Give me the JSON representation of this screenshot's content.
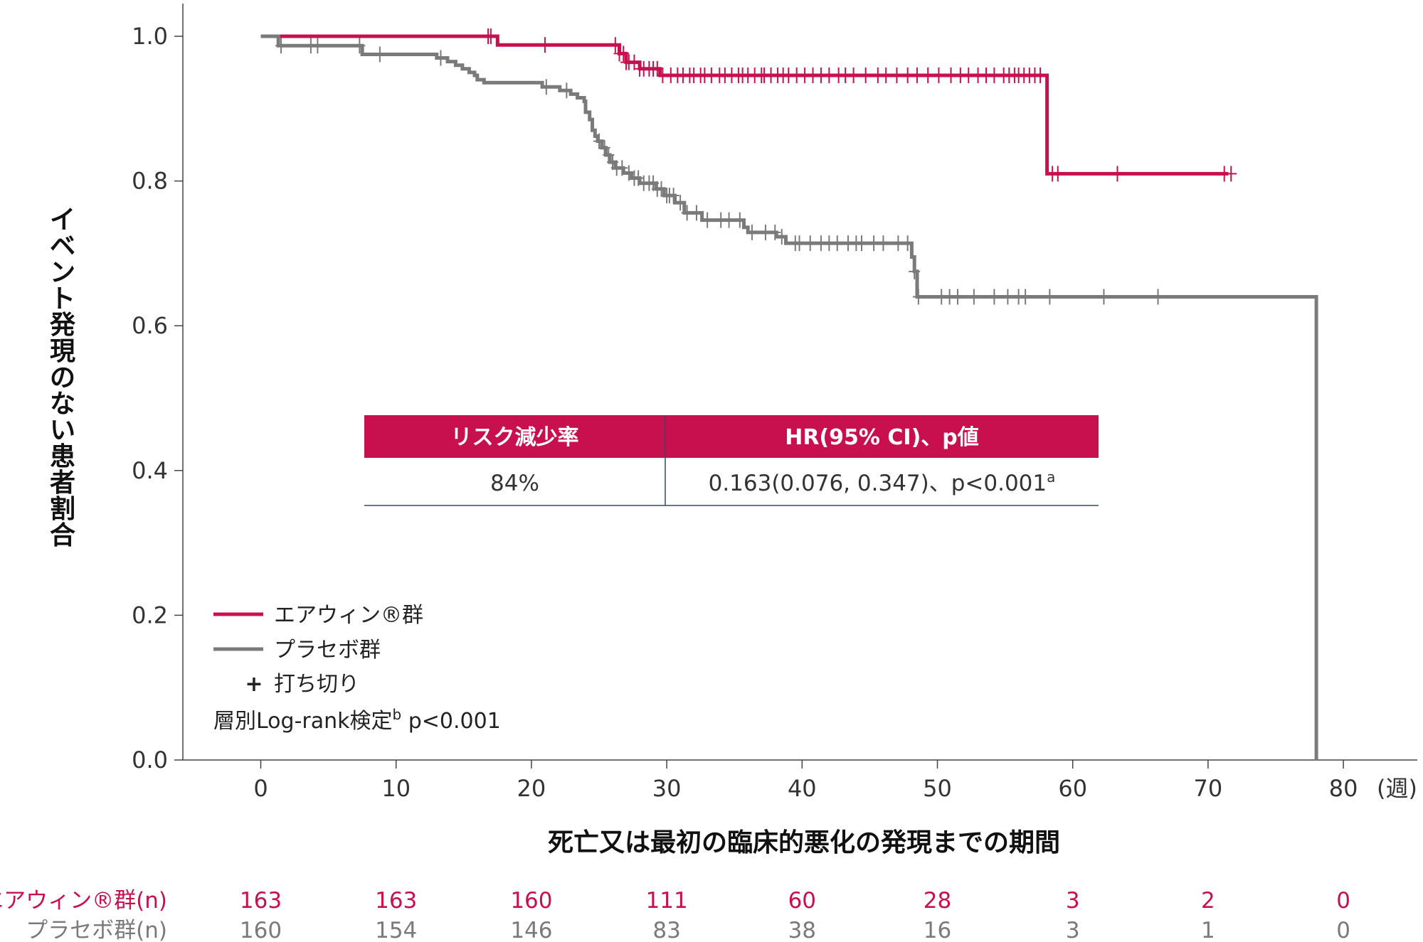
{
  "chart_data": {
    "type": "line",
    "step": true,
    "ylabel": "イベント発現のない患者割合",
    "xlabel": "死亡又は最初の臨床的悪化の発現までの期間",
    "x_unit": "(週)",
    "xlim": [
      -5.5,
      86
    ],
    "ylim": [
      0,
      1.05
    ],
    "xticks": [
      "0",
      "10",
      "20",
      "30",
      "40",
      "50",
      "60",
      "70",
      "80"
    ],
    "yticks": [
      "0.0",
      "0.2",
      "0.4",
      "0.6",
      "0.8",
      "1.0"
    ],
    "grid": false,
    "series": [
      {
        "name": "エアウィン®群",
        "color": "#c8104e",
        "points": [
          [
            0,
            1.0
          ],
          [
            17.5,
            1.0
          ],
          [
            17.5,
            0.988
          ],
          [
            26.5,
            0.988
          ],
          [
            26.5,
            0.976
          ],
          [
            27,
            0.976
          ],
          [
            27,
            0.964
          ],
          [
            28,
            0.964
          ],
          [
            28,
            0.955
          ],
          [
            29.5,
            0.955
          ],
          [
            29.5,
            0.946
          ],
          [
            58.1,
            0.946
          ],
          [
            58.1,
            0.81
          ],
          [
            71.5,
            0.81
          ]
        ],
        "censor_x": [
          16.8,
          17.0,
          21.0,
          26.2,
          26.5,
          26.8,
          27.0,
          27.2,
          27.6,
          28.0,
          28.3,
          28.7,
          29.0,
          29.3,
          29.7,
          30.3,
          30.8,
          31.2,
          31.7,
          32.0,
          32.5,
          32.8,
          33.3,
          33.9,
          34.3,
          34.8,
          35.3,
          35.6,
          36.0,
          36.5,
          37.0,
          37.2,
          37.7,
          38.2,
          38.6,
          39.0,
          39.6,
          40.2,
          40.8,
          41.4,
          42.0,
          42.7,
          43.2,
          43.8,
          44.7,
          45.6,
          46.2,
          47.0,
          47.8,
          48.5,
          49.3,
          50.1,
          51.0,
          51.7,
          52.3,
          53.0,
          53.6,
          54.2,
          54.9,
          55.3,
          55.7,
          56.0,
          56.4,
          56.8,
          57.2,
          57.6,
          58.5,
          58.9,
          63.3,
          71.2,
          71.7
        ]
      },
      {
        "name": "プラセボ群",
        "color": "#7a7a7a",
        "points": [
          [
            0,
            1.0
          ],
          [
            1.3,
            1.0
          ],
          [
            1.3,
            0.987
          ],
          [
            7.5,
            0.987
          ],
          [
            7.5,
            0.975
          ],
          [
            13.0,
            0.975
          ],
          [
            13.0,
            0.97
          ],
          [
            13.8,
            0.97
          ],
          [
            13.8,
            0.965
          ],
          [
            14.4,
            0.965
          ],
          [
            14.4,
            0.96
          ],
          [
            14.9,
            0.96
          ],
          [
            14.9,
            0.955
          ],
          [
            15.4,
            0.955
          ],
          [
            15.4,
            0.95
          ],
          [
            15.8,
            0.95
          ],
          [
            15.8,
            0.946
          ],
          [
            16.0,
            0.946
          ],
          [
            16.0,
            0.94
          ],
          [
            16.5,
            0.94
          ],
          [
            16.5,
            0.936
          ],
          [
            20.8,
            0.936
          ],
          [
            20.8,
            0.93
          ],
          [
            22.1,
            0.93
          ],
          [
            22.1,
            0.925
          ],
          [
            22.9,
            0.925
          ],
          [
            22.9,
            0.92
          ],
          [
            23.4,
            0.92
          ],
          [
            23.4,
            0.915
          ],
          [
            23.9,
            0.915
          ],
          [
            23.9,
            0.91
          ],
          [
            24.0,
            0.91
          ],
          [
            24.0,
            0.895
          ],
          [
            24.3,
            0.895
          ],
          [
            24.3,
            0.885
          ],
          [
            24.5,
            0.885
          ],
          [
            24.5,
            0.87
          ],
          [
            24.7,
            0.87
          ],
          [
            24.7,
            0.862
          ],
          [
            24.9,
            0.862
          ],
          [
            24.9,
            0.855
          ],
          [
            25.2,
            0.855
          ],
          [
            25.2,
            0.846
          ],
          [
            25.5,
            0.846
          ],
          [
            25.5,
            0.836
          ],
          [
            25.8,
            0.836
          ],
          [
            25.8,
            0.826
          ],
          [
            26.2,
            0.826
          ],
          [
            26.2,
            0.818
          ],
          [
            26.8,
            0.818
          ],
          [
            26.8,
            0.811
          ],
          [
            27.4,
            0.811
          ],
          [
            27.4,
            0.804
          ],
          [
            28.0,
            0.804
          ],
          [
            28.0,
            0.797
          ],
          [
            29.2,
            0.797
          ],
          [
            29.2,
            0.789
          ],
          [
            29.8,
            0.789
          ],
          [
            29.8,
            0.78
          ],
          [
            30.6,
            0.78
          ],
          [
            30.6,
            0.77
          ],
          [
            31.3,
            0.77
          ],
          [
            31.3,
            0.756
          ],
          [
            32.6,
            0.756
          ],
          [
            32.6,
            0.746
          ],
          [
            35.7,
            0.746
          ],
          [
            35.7,
            0.736
          ],
          [
            36.0,
            0.736
          ],
          [
            36.0,
            0.729
          ],
          [
            38.1,
            0.729
          ],
          [
            38.1,
            0.723
          ],
          [
            38.8,
            0.723
          ],
          [
            38.8,
            0.714
          ],
          [
            48.1,
            0.714
          ],
          [
            48.1,
            0.695
          ],
          [
            48.3,
            0.695
          ],
          [
            48.3,
            0.675
          ],
          [
            48.5,
            0.675
          ],
          [
            48.5,
            0.64
          ],
          [
            78.0,
            0.64
          ],
          [
            78.0,
            0.0
          ]
        ],
        "censor_x": [
          1.5,
          3.7,
          4.2,
          7.3,
          8.8,
          13.3,
          21.1,
          22.6,
          25.0,
          25.4,
          25.7,
          26.0,
          26.3,
          26.7,
          27.2,
          27.6,
          27.9,
          28.3,
          28.7,
          29.0,
          29.3,
          29.6,
          30.0,
          30.2,
          30.5,
          31.0,
          31.5,
          32.2,
          33.0,
          34.0,
          34.6,
          35.4,
          36.3,
          37.3,
          38.0,
          38.5,
          39.5,
          39.8,
          40.6,
          41.4,
          42.0,
          42.6,
          43.4,
          44.0,
          44.4,
          45.3,
          46.0,
          47.1,
          47.8,
          48.3,
          48.6,
          50.3,
          50.9,
          51.5,
          52.7,
          54.2,
          55.2,
          56.0,
          56.5,
          58.3,
          62.3,
          66.3
        ]
      }
    ],
    "legend": {
      "placement": "bottom-left",
      "items": [
        "エアウィン®群",
        "プラセボ群"
      ],
      "censor_symbol": "+",
      "censor_label": "打ち切り",
      "test_label": "層別Log-rank検定",
      "test_sup": "b",
      "test_p": "p<0.001"
    },
    "stats_table": {
      "headers": [
        "リスク減少率",
        "HR(95% CI)、p値"
      ],
      "row": [
        "84%",
        "0.163(0.076, 0.347)、p<0.001"
      ],
      "row_sup": "a",
      "header_color": "#c8104e"
    },
    "risk_table": {
      "times": [
        0,
        10,
        20,
        30,
        40,
        50,
        60,
        70,
        80
      ],
      "rows": [
        {
          "label": "エアウィン®群(n)",
          "color": "#c8104e",
          "values": [
            "163",
            "163",
            "160",
            "111",
            "60",
            "28",
            "3",
            "2",
            "0"
          ]
        },
        {
          "label": "プラセボ群(n)",
          "color": "#7a7a7a",
          "values": [
            "160",
            "154",
            "146",
            "83",
            "38",
            "16",
            "3",
            "1",
            "0"
          ]
        }
      ]
    }
  }
}
